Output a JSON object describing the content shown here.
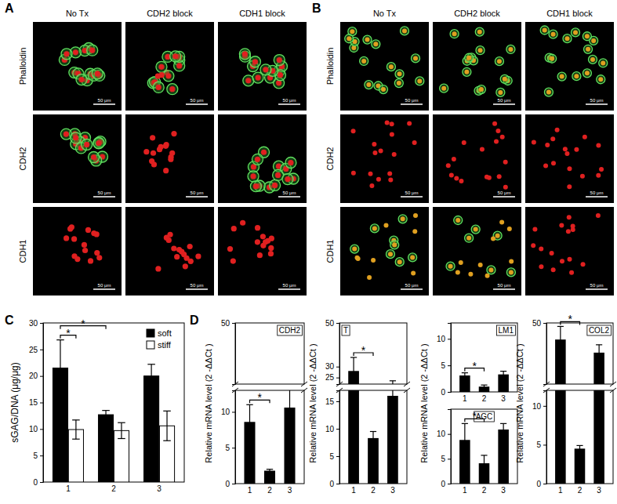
{
  "panels": [
    {
      "label": "A",
      "columns": [
        "No Tx",
        "CDH2 block",
        "CDH1 block"
      ],
      "rows": [
        "Phalloidin",
        "CDH2",
        "CDH1"
      ],
      "scale_bar": "50 μm"
    },
    {
      "label": "B",
      "columns": [
        "No Tx",
        "CDH2 block",
        "CDH1 block"
      ],
      "rows": [
        "Phalloidin",
        "CDH2",
        "CDH1"
      ],
      "scale_bar": "50 μm"
    }
  ],
  "chart_data": [
    {
      "type": "bar",
      "panel": "C",
      "categories": [
        "1",
        "2",
        "3"
      ],
      "series": [
        {
          "name": "soft",
          "color": "#000000",
          "values": [
            21.5,
            12.7,
            20.0
          ],
          "errors": [
            5.3,
            0.8,
            2.2
          ]
        },
        {
          "name": "stiff",
          "color": "#ffffff",
          "values": [
            9.9,
            9.7,
            10.6
          ],
          "errors": [
            1.8,
            1.5,
            2.8
          ]
        }
      ],
      "y_label": "sGAG/DNA (μg/μg)",
      "ylim": [
        0,
        30
      ],
      "yticks": [
        0,
        5,
        10,
        15,
        20,
        25,
        30
      ],
      "legend": "top-right",
      "annotations": [
        {
          "text": "*",
          "from": [
            "1",
            "soft"
          ],
          "to": [
            "1",
            "stiff"
          ]
        },
        {
          "text": "*",
          "from": [
            "1",
            "soft"
          ],
          "to": [
            "2",
            "soft"
          ]
        }
      ]
    },
    {
      "type": "bar",
      "panel": "D",
      "title": "CDH2",
      "categories": [
        "1",
        "2",
        "3"
      ],
      "values": [
        8.6,
        1.8,
        10.6
      ],
      "errors": [
        2.4,
        0.2,
        2.8
      ],
      "color": "#000000",
      "y_label": "Relative mRNA level (2 -ΔΔCt )",
      "ylim": [
        0,
        50
      ],
      "y_break": [
        13,
        45
      ],
      "yticks": [
        0,
        5,
        10,
        50
      ],
      "annotations": [
        {
          "text": "*",
          "from": "1",
          "to": "2"
        }
      ]
    },
    {
      "type": "bar",
      "title": "T",
      "categories": [
        "1",
        "2",
        "3"
      ],
      "values": [
        28.0,
        8.3,
        16.0
      ],
      "errors": [
        6.2,
        1.2,
        7.5
      ],
      "color": "#000000",
      "y_label": "Relative mRNA level (2 -ΔΔCt )",
      "ylim": [
        0,
        50
      ],
      "y_break": [
        17,
        22
      ],
      "yticks": [
        0,
        5,
        10,
        15,
        25,
        30,
        50
      ],
      "annotations": [
        {
          "text": "*",
          "from": "1",
          "to": "2"
        }
      ]
    },
    {
      "type": "bar",
      "title": "LM1",
      "categories": [
        "1",
        "2",
        "3"
      ],
      "values": [
        3.1,
        1.0,
        3.3
      ],
      "errors": [
        0.5,
        0.3,
        0.6
      ],
      "color": "#000000",
      "y_label": "Relative mRNA level (2 -ΔΔCt )",
      "ylim": [
        0,
        13
      ],
      "yticks": [
        0,
        5,
        10
      ],
      "annotations": [
        {
          "text": "*",
          "from": "1",
          "to": "2"
        }
      ]
    },
    {
      "type": "bar",
      "title": "AGC",
      "categories": [
        "1",
        "2",
        "3"
      ],
      "values": [
        8.8,
        4.1,
        10.9
      ],
      "errors": [
        3.3,
        1.6,
        1.2
      ],
      "color": "#000000",
      "ylim": [
        0,
        15
      ],
      "yticks": [
        0,
        5,
        10
      ],
      "annotations": [
        {
          "text": "*",
          "from": "1",
          "to": "2"
        }
      ]
    },
    {
      "type": "bar",
      "title": "COL2",
      "categories": [
        "1",
        "2",
        "3"
      ],
      "values": [
        40.5,
        4.5,
        33.0
      ],
      "errors": [
        7.5,
        0.4,
        4.5
      ],
      "color": "#000000",
      "y_label": "Relative mRNA level (2 -ΔΔCt )",
      "ylim": [
        0,
        50
      ],
      "y_break": [
        12,
        15
      ],
      "yticks": [
        0,
        5,
        10,
        50
      ],
      "annotations": [
        {
          "text": "*",
          "from": "1",
          "to": "2"
        }
      ]
    }
  ]
}
